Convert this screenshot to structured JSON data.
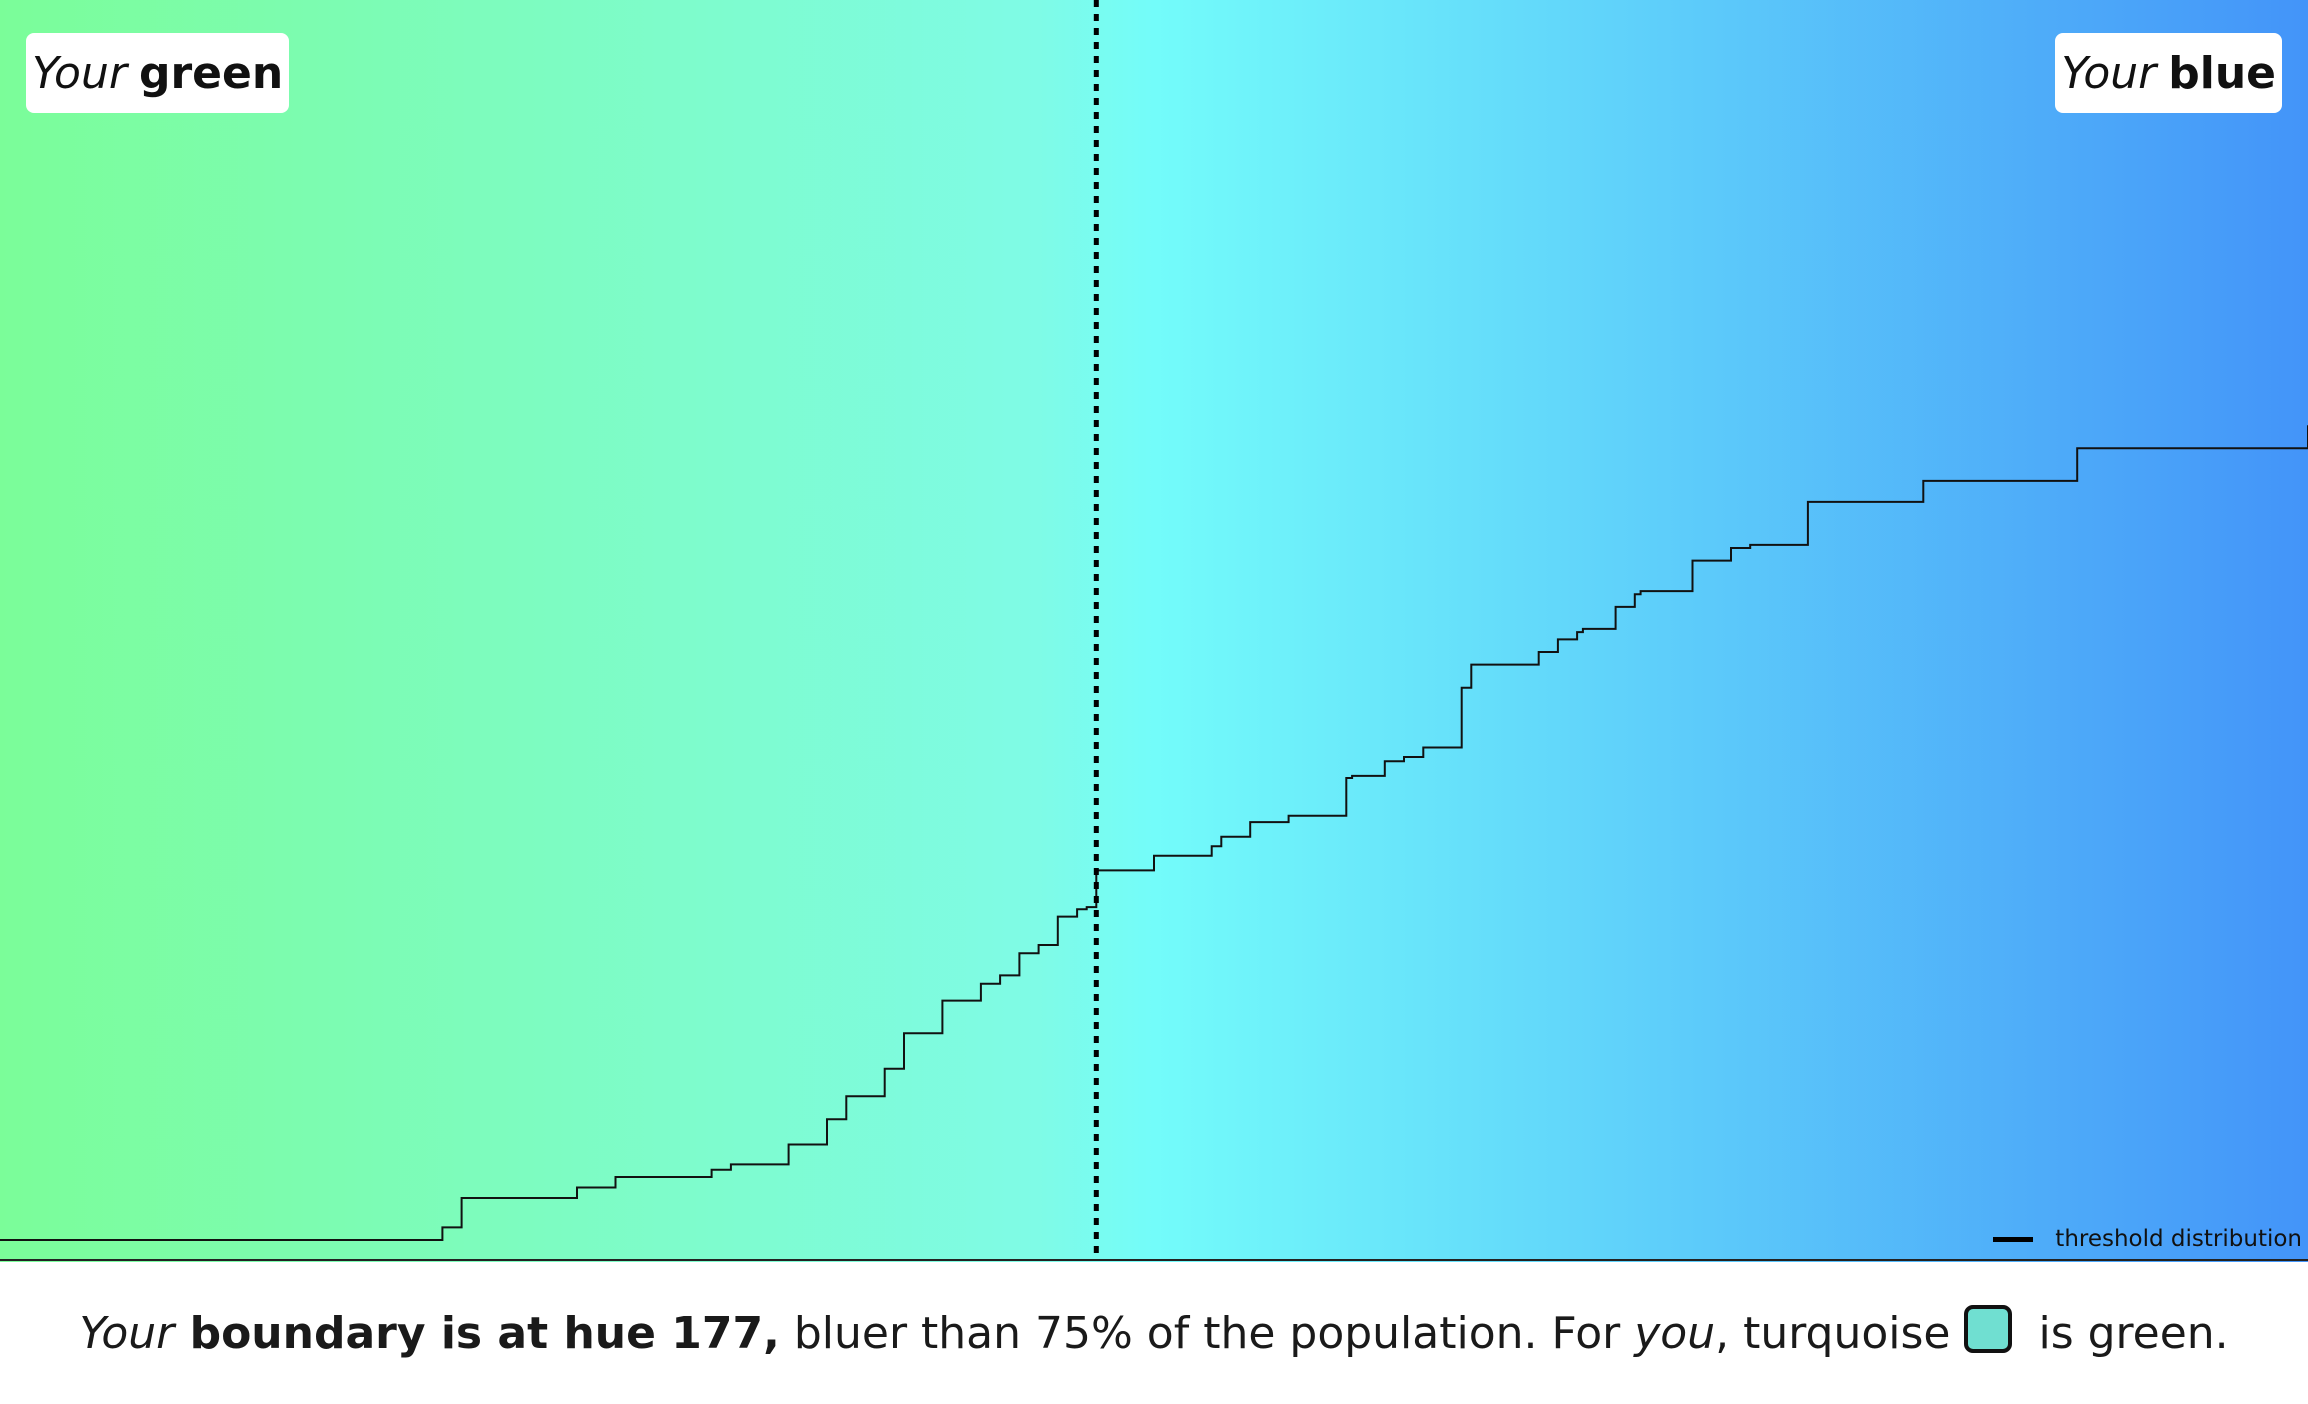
{
  "labels": {
    "left_prefix": "Your",
    "left_word": "green",
    "right_prefix": "Your",
    "right_word": "blue"
  },
  "legend": {
    "label": "threshold distribution"
  },
  "caption": {
    "part1": "Your",
    "part2": " boundary is at hue 177,",
    "part3": " bluer than 75% of the population. For ",
    "part4": "you",
    "part5": ", turquoise",
    "part6": " is green."
  },
  "colors": {
    "green": "#7bfd99",
    "turquoise": "#7ffbe6",
    "cyan": "#73fcfa",
    "blue": "#4394f9",
    "swatch": "#70dfd1"
  },
  "chart_data": {
    "type": "line",
    "series": [
      {
        "style": "step",
        "x": [
          120,
          143,
          144,
          150,
          152,
          157,
          158,
          161,
          163,
          164,
          166,
          167,
          169,
          171,
          172,
          173,
          174,
          175,
          176,
          176.5,
          177,
          180,
          183,
          183.5,
          185,
          187,
          190,
          190.3,
          192,
          193,
          194,
          196,
          196.5,
          200,
          201,
          202,
          202.3,
          204,
          205,
          205.3,
          208,
          210,
          211,
          214,
          220,
          228,
          240
        ],
        "y": [
          0.0,
          0.012,
          0.04,
          0.05,
          0.06,
          0.067,
          0.072,
          0.091,
          0.115,
          0.137,
          0.163,
          0.197,
          0.228,
          0.244,
          0.252,
          0.273,
          0.281,
          0.308,
          0.315,
          0.317,
          0.352,
          0.366,
          0.375,
          0.384,
          0.398,
          0.404,
          0.44,
          0.442,
          0.456,
          0.46,
          0.469,
          0.526,
          0.548,
          0.56,
          0.572,
          0.579,
          0.582,
          0.603,
          0.615,
          0.618,
          0.647,
          0.659,
          0.662,
          0.703,
          0.723,
          0.754,
          0.776
        ]
      }
    ],
    "xlim": [
      120,
      240
    ],
    "ylim": [
      0,
      1
    ],
    "marker_x": 177,
    "marker_style": "dotted",
    "legend_position": "bottom-right",
    "grid": false
  }
}
